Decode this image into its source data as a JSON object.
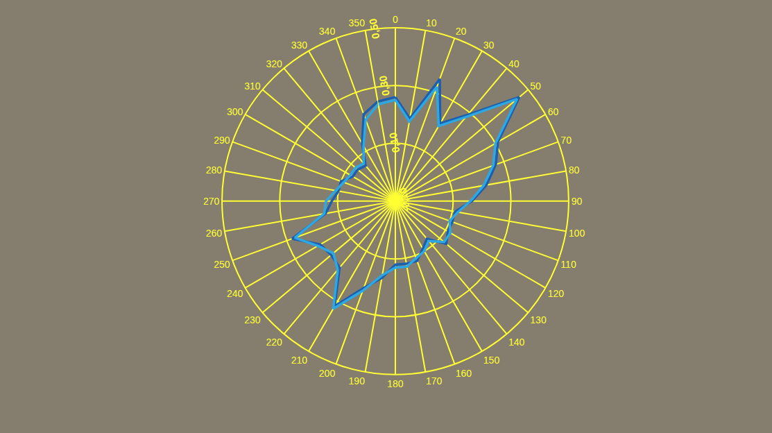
{
  "chart_data": {
    "type": "line",
    "x": [
      0,
      10,
      20,
      30,
      40,
      50,
      60,
      70,
      80,
      90,
      100,
      110,
      120,
      130,
      140,
      150,
      160,
      170,
      180,
      190,
      200,
      210,
      220,
      230,
      240,
      250,
      260,
      270,
      280,
      290,
      300,
      310,
      320,
      330,
      340,
      350
    ],
    "xticks": [
      0,
      10,
      20,
      30,
      40,
      50,
      60,
      70,
      80,
      90,
      100,
      110,
      120,
      130,
      140,
      150,
      160,
      170,
      180,
      190,
      200,
      210,
      220,
      230,
      240,
      250,
      260,
      270,
      280,
      290,
      300,
      310,
      320,
      330,
      340,
      350
    ],
    "ylim": [
      -0.1,
      0.5
    ],
    "yticks": [
      {
        "value": -0.1,
        "label": "-0,10"
      },
      {
        "value": 0.1,
        "label": "0,10"
      },
      {
        "value": 0.3,
        "label": "0,30"
      },
      {
        "value": 0.5,
        "label": "0,50"
      }
    ],
    "grid": true,
    "series": [
      {
        "color": "#1b5fae",
        "values": [
          0.26,
          0.19,
          0.35,
          0.21,
          0.29,
          0.46,
          0.31,
          0.27,
          0.22,
          0.165,
          0.11,
          0.11,
          0.11,
          0.13,
          0.07,
          0.09,
          0.12,
          0.12,
          0.12,
          0.17,
          0.22,
          0.32,
          0.2,
          0.19,
          0.2,
          0.28,
          0.145,
          0.12,
          0.1,
          0.1,
          0.07,
          0.07,
          0.06,
          0.13,
          0.22,
          0.25
        ]
      },
      {
        "color": "#2ea8e2",
        "values": [
          0.25,
          0.18,
          0.32,
          0.2,
          0.28,
          0.45,
          0.3,
          0.26,
          0.21,
          0.16,
          0.12,
          0.1,
          0.12,
          0.12,
          0.08,
          0.1,
          0.11,
          0.13,
          0.13,
          0.16,
          0.23,
          0.33,
          0.21,
          0.18,
          0.21,
          0.27,
          0.15,
          0.14,
          0.11,
          0.09,
          0.08,
          0.08,
          0.07,
          0.12,
          0.2,
          0.24
        ]
      }
    ]
  }
}
